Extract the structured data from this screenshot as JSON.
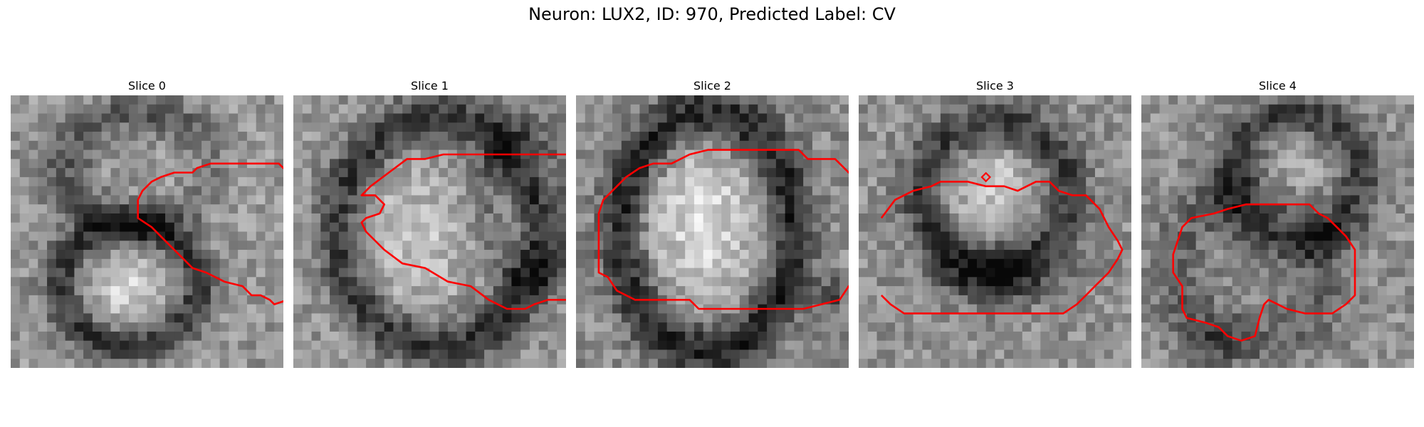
{
  "figure": {
    "title": "Neuron: LUX2, ID: 970, Predicted Label: CV",
    "contour_color": "#ff0000",
    "colormap": "gray"
  },
  "slices": [
    {
      "title": "Slice 0",
      "contour": [
        [
          24.5,
          7.5
        ],
        [
          29.5,
          7.5
        ],
        [
          30.5,
          8.5
        ],
        [
          31.5,
          9.0
        ],
        [
          32.5,
          10.0
        ],
        [
          33.5,
          11.0
        ],
        [
          34.5,
          12.5
        ],
        [
          35.5,
          13.5
        ],
        [
          37.0,
          14.0
        ],
        [
          37.5,
          15.0
        ],
        [
          39.5,
          15.0
        ],
        [
          39.5,
          16.5
        ],
        [
          37.5,
          18.0
        ],
        [
          36.5,
          20.0
        ],
        [
          35.5,
          21.0
        ],
        [
          34.5,
          21.5
        ],
        [
          33.0,
          21.5
        ],
        [
          31.5,
          22.0
        ],
        [
          30.5,
          22.5
        ],
        [
          29.0,
          23.0
        ],
        [
          28.5,
          22.5
        ],
        [
          27.5,
          22.0
        ],
        [
          26.5,
          22.0
        ],
        [
          25.5,
          21.0
        ],
        [
          23.5,
          20.5
        ],
        [
          22.5,
          20.0
        ],
        [
          21.5,
          19.5
        ],
        [
          20.0,
          19.0
        ],
        [
          18.5,
          17.5
        ],
        [
          17.0,
          16.0
        ],
        [
          15.5,
          14.5
        ],
        [
          14.0,
          13.5
        ],
        [
          14.0,
          11.5
        ],
        [
          14.5,
          10.5
        ],
        [
          15.5,
          9.5
        ],
        [
          16.5,
          9.0
        ],
        [
          18.0,
          8.5
        ],
        [
          20.0,
          8.5
        ],
        [
          20.5,
          8.0
        ],
        [
          22.0,
          7.5
        ]
      ]
    },
    {
      "title": "Slice 1",
      "contour": [
        [
          19.5,
          6.5
        ],
        [
          30.5,
          6.5
        ],
        [
          31.5,
          7.5
        ],
        [
          33.0,
          8.0
        ],
        [
          34.5,
          9.5
        ],
        [
          35.5,
          10.5
        ],
        [
          37.5,
          12.5
        ],
        [
          37.5,
          17.0
        ],
        [
          36.5,
          18.0
        ],
        [
          35.5,
          19.5
        ],
        [
          34.0,
          20.0
        ],
        [
          32.5,
          21.0
        ],
        [
          31.5,
          22.0
        ],
        [
          30.5,
          22.5
        ],
        [
          28.0,
          22.5
        ],
        [
          26.5,
          23.0
        ],
        [
          25.5,
          23.5
        ],
        [
          23.5,
          23.5
        ],
        [
          21.5,
          22.5
        ],
        [
          19.5,
          21.0
        ],
        [
          17.0,
          20.5
        ],
        [
          14.5,
          19.0
        ],
        [
          12.0,
          18.5
        ],
        [
          10.0,
          17.0
        ],
        [
          8.0,
          15.0
        ],
        [
          7.5,
          14.0
        ],
        [
          8.0,
          13.5
        ],
        [
          9.5,
          13.0
        ],
        [
          10.0,
          12.0
        ],
        [
          9.0,
          11.0
        ],
        [
          7.5,
          11.0
        ],
        [
          8.5,
          10.0
        ],
        [
          10.5,
          8.5
        ],
        [
          12.5,
          7.0
        ],
        [
          14.5,
          7.0
        ],
        [
          16.5,
          6.5
        ]
      ]
    },
    {
      "title": "Slice 2",
      "contour": [
        [
          14.5,
          6.0
        ],
        [
          24.5,
          6.0
        ],
        [
          25.5,
          7.0
        ],
        [
          28.5,
          7.0
        ],
        [
          29.5,
          8.0
        ],
        [
          30.5,
          9.0
        ],
        [
          31.5,
          10.0
        ],
        [
          32.5,
          11.5
        ],
        [
          33.5,
          13.5
        ],
        [
          34.0,
          17.0
        ],
        [
          33.0,
          18.5
        ],
        [
          31.5,
          20.0
        ],
        [
          30.0,
          21.0
        ],
        [
          29.0,
          22.5
        ],
        [
          27.0,
          23.0
        ],
        [
          25.0,
          23.5
        ],
        [
          13.5,
          23.5
        ],
        [
          12.5,
          22.5
        ],
        [
          6.5,
          22.5
        ],
        [
          4.5,
          21.5
        ],
        [
          3.5,
          20.0
        ],
        [
          2.5,
          19.5
        ],
        [
          2.5,
          13.0
        ],
        [
          3.0,
          11.5
        ],
        [
          4.5,
          10.0
        ],
        [
          5.5,
          9.0
        ],
        [
          7.0,
          8.0
        ],
        [
          8.5,
          7.5
        ],
        [
          10.5,
          7.5
        ],
        [
          12.5,
          6.5
        ]
      ]
    },
    {
      "title": "Slice 3",
      "contour": [
        [
          2.5,
          13.5
        ],
        [
          4.0,
          11.5
        ],
        [
          6.0,
          10.5
        ],
        [
          8.0,
          10.0
        ],
        [
          9.0,
          9.5
        ],
        [
          12.0,
          9.5
        ],
        [
          14.0,
          10.0
        ],
        [
          16.0,
          10.0
        ],
        [
          17.5,
          10.5
        ],
        [
          19.5,
          9.5
        ],
        [
          21.0,
          9.5
        ],
        [
          22.0,
          10.5
        ],
        [
          23.5,
          11.0
        ],
        [
          25.0,
          11.0
        ],
        [
          26.5,
          12.5
        ],
        [
          27.5,
          14.5
        ],
        [
          28.5,
          16.0
        ],
        [
          29.0,
          17.0
        ],
        [
          28.5,
          18.0
        ],
        [
          27.5,
          19.5
        ],
        [
          26.0,
          21.0
        ],
        [
          25.0,
          22.0
        ],
        [
          24.0,
          23.0
        ],
        [
          22.5,
          24.0
        ],
        [
          5.0,
          24.0
        ],
        [
          3.5,
          23.0
        ],
        [
          2.5,
          22.0
        ]
      ]
    },
    {
      "title": "Slice 4",
      "contour": [
        [
          11.5,
          12.0
        ],
        [
          18.5,
          12.0
        ],
        [
          19.5,
          13.0
        ],
        [
          20.5,
          13.5
        ],
        [
          21.5,
          14.5
        ],
        [
          22.5,
          15.5
        ],
        [
          23.5,
          17.0
        ],
        [
          23.5,
          19.0
        ],
        [
          23.5,
          22.0
        ],
        [
          22.5,
          23.0
        ],
        [
          21.0,
          24.0
        ],
        [
          19.5,
          24.0
        ],
        [
          18.0,
          24.0
        ],
        [
          16.0,
          23.5
        ],
        [
          15.0,
          23.0
        ],
        [
          14.0,
          22.5
        ],
        [
          13.5,
          23.0
        ],
        [
          13.0,
          24.5
        ],
        [
          12.5,
          26.5
        ],
        [
          11.0,
          27.0
        ],
        [
          9.5,
          26.5
        ],
        [
          8.5,
          25.5
        ],
        [
          7.0,
          25.0
        ],
        [
          5.0,
          24.5
        ],
        [
          4.5,
          23.5
        ],
        [
          4.5,
          21.0
        ],
        [
          3.5,
          19.5
        ],
        [
          3.5,
          17.5
        ],
        [
          4.0,
          16.0
        ],
        [
          4.5,
          14.5
        ],
        [
          5.5,
          13.5
        ],
        [
          8.0,
          13.0
        ],
        [
          9.5,
          12.5
        ]
      ]
    }
  ]
}
